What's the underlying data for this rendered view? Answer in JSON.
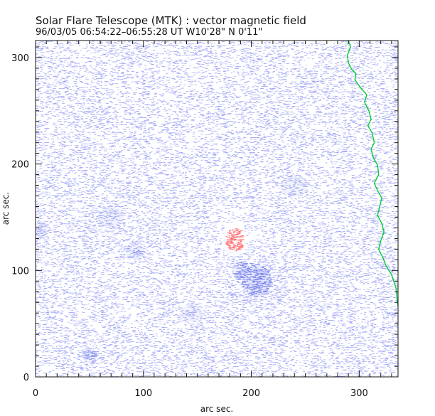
{
  "chart_data": {
    "type": "heatmap",
    "title": "Solar Flare Telescope (MTK) : vector magnetic field",
    "subtitle": "96/03/05  06:54:22–06:55:28 UT    W10'28\"   N 0'11\"",
    "xlabel": "arc sec.",
    "ylabel": "arc sec.",
    "xlim": [
      0,
      336
    ],
    "ylim": [
      0,
      316
    ],
    "x_ticks": [
      0,
      100,
      200,
      300
    ],
    "y_ticks": [
      0,
      100,
      200,
      300
    ],
    "x_tick_labels": [
      "0",
      "100",
      "200",
      "300"
    ],
    "y_tick_labels": [
      "0",
      "100",
      "200",
      "300"
    ],
    "x_minor_step": 10,
    "y_minor_step": 10,
    "field_color": "#7b86f0",
    "positive_color": "#ff5f5f",
    "limb_color": "#00cc33",
    "blue_concentrations": [
      {
        "x": 205,
        "y": 90,
        "rx": 16,
        "ry": 18,
        "strength": 1.0
      },
      {
        "x": 190,
        "y": 100,
        "rx": 10,
        "ry": 10,
        "strength": 0.6
      },
      {
        "x": 92,
        "y": 118,
        "rx": 10,
        "ry": 9,
        "strength": 0.55
      },
      {
        "x": 50,
        "y": 20,
        "rx": 8,
        "ry": 8,
        "strength": 0.7
      },
      {
        "x": 5,
        "y": 138,
        "rx": 7,
        "ry": 10,
        "strength": 0.5
      },
      {
        "x": 70,
        "y": 150,
        "rx": 14,
        "ry": 12,
        "strength": 0.35
      },
      {
        "x": 145,
        "y": 60,
        "rx": 12,
        "ry": 10,
        "strength": 0.3
      },
      {
        "x": 240,
        "y": 180,
        "rx": 14,
        "ry": 12,
        "strength": 0.3
      }
    ],
    "positive_concentrations": [
      {
        "x": 184,
        "y": 129,
        "rx": 6,
        "ry": 7,
        "strength": 1.0
      }
    ],
    "limb": {
      "x": [
        290,
        292,
        289,
        290,
        293,
        297,
        296,
        301,
        307,
        305,
        309,
        311,
        308,
        312,
        314,
        311,
        313,
        317,
        318,
        314,
        317,
        321,
        319,
        317,
        321,
        323,
        320,
        318,
        322,
        325,
        330,
        334,
        335,
        336
      ],
      "y": [
        316,
        310,
        302,
        295,
        289,
        285,
        279,
        272,
        265,
        258,
        250,
        242,
        236,
        229,
        220,
        214,
        206,
        199,
        190,
        182,
        175,
        168,
        160,
        152,
        144,
        136,
        128,
        120,
        112,
        104,
        96,
        84,
        74,
        66
      ]
    }
  }
}
